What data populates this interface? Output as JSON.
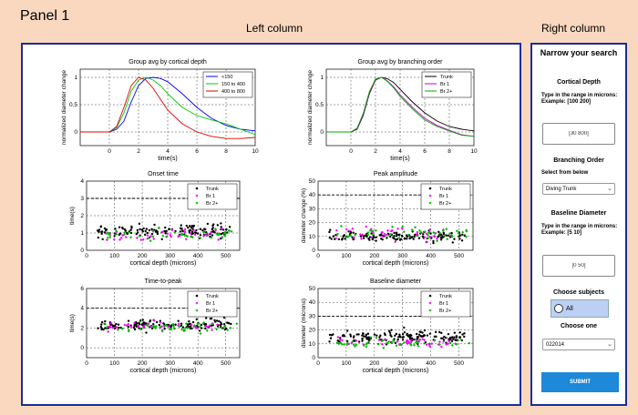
{
  "panel": {
    "title": "Panel 1",
    "left_title": "Left column",
    "right_title": "Right column"
  },
  "sidebar": {
    "heading": "Narrow your search",
    "cortical": {
      "title": "Cortical Depth",
      "instructions": "Type in the range in microns: Example: [100 200]",
      "value": "[30 800]"
    },
    "branching": {
      "title": "Branching Order",
      "select_label": "Select from below",
      "selected": "Diving Trunk"
    },
    "baseline": {
      "title": "Baseline Diameter",
      "instructions": "Type in the range in microns: Example: [5 10]",
      "value": "[0 50]"
    },
    "subjects": {
      "title": "Choose subjects",
      "option": "All"
    },
    "choose_one": {
      "title": "Choose one",
      "selected": "022014"
    },
    "submit": "SUBMIT"
  },
  "colors": {
    "accent": "#1a2e9a",
    "panel_bg": "#fad8c0",
    "submit": "#1e88d9",
    "radio": "#bcd0f5"
  },
  "chart_data": [
    {
      "type": "line",
      "title": "Group avg by cortical depth",
      "xlabel": "time(s)",
      "ylabel": "normalized diameter change",
      "xlim": [
        -2,
        10
      ],
      "ylim": [
        -0.25,
        1.15
      ],
      "xticks": [
        0,
        2,
        4,
        6,
        8,
        10
      ],
      "yticks": [
        0,
        0.5,
        1
      ],
      "legend": [
        "<150",
        "150 to 400",
        "400 to 800"
      ],
      "colors": [
        "#0000ff",
        "#00cc00",
        "#dd0000"
      ],
      "series": [
        {
          "name": "<150",
          "x": [
            -2,
            -1,
            0,
            0.5,
            1,
            1.5,
            2,
            2.5,
            3,
            3.5,
            4,
            5,
            6,
            7,
            8,
            9,
            10
          ],
          "y": [
            0,
            0,
            0,
            0.05,
            0.2,
            0.55,
            0.85,
            0.98,
            1,
            0.98,
            0.92,
            0.7,
            0.45,
            0.25,
            0.12,
            0.05,
            0.02
          ]
        },
        {
          "name": "150 to 400",
          "x": [
            -2,
            -1,
            0,
            0.5,
            1,
            1.5,
            2,
            2.5,
            3,
            3.5,
            4,
            5,
            6,
            7,
            8,
            9,
            10
          ],
          "y": [
            0,
            0,
            0,
            0.08,
            0.35,
            0.75,
            0.95,
            1,
            0.95,
            0.85,
            0.7,
            0.45,
            0.3,
            0.22,
            0.15,
            0.05,
            -0.05
          ]
        },
        {
          "name": "400 to 800",
          "x": [
            -2,
            -1,
            0,
            0.5,
            1,
            1.5,
            2,
            2.5,
            3,
            3.5,
            4,
            5,
            6,
            7,
            8,
            9,
            10
          ],
          "y": [
            0,
            0,
            0,
            0.1,
            0.45,
            0.85,
            1,
            0.95,
            0.8,
            0.6,
            0.4,
            0.15,
            0,
            -0.08,
            -0.12,
            -0.12,
            -0.1
          ]
        }
      ]
    },
    {
      "type": "line",
      "title": "Group avg by branching order",
      "xlabel": "time(s)",
      "ylabel": "normalized diameter change",
      "xlim": [
        -2,
        10
      ],
      "ylim": [
        -0.25,
        1.15
      ],
      "xticks": [
        0,
        2,
        4,
        6,
        8,
        10
      ],
      "yticks": [
        0,
        0.5,
        1
      ],
      "legend": [
        "Trunk",
        "Br 1",
        "Br 2+"
      ],
      "colors": [
        "#000000",
        "#cc00cc",
        "#00aa00"
      ],
      "series": [
        {
          "name": "Trunk",
          "x": [
            -2,
            -1,
            0,
            0.5,
            1,
            1.5,
            2,
            2.5,
            3,
            3.5,
            4,
            5,
            6,
            7,
            8,
            9,
            10
          ],
          "y": [
            0,
            0,
            0,
            0.05,
            0.3,
            0.7,
            0.95,
            1,
            0.97,
            0.9,
            0.78,
            0.55,
            0.35,
            0.2,
            0.1,
            0.05,
            0.02
          ]
        },
        {
          "name": "Br 1",
          "x": [
            -2,
            -1,
            0,
            0.5,
            1,
            1.5,
            2,
            2.5,
            3,
            3.5,
            4,
            5,
            6,
            7,
            8,
            9,
            10
          ],
          "y": [
            0,
            0,
            0,
            0.06,
            0.32,
            0.72,
            0.96,
            1,
            0.93,
            0.82,
            0.68,
            0.45,
            0.25,
            0.12,
            0.03,
            -0.05,
            -0.08
          ]
        },
        {
          "name": "Br 2+",
          "x": [
            -2,
            -1,
            0,
            0.5,
            1,
            1.5,
            2,
            2.5,
            3,
            3.5,
            4,
            5,
            6,
            7,
            8,
            9,
            10
          ],
          "y": [
            0,
            0,
            0,
            0.07,
            0.34,
            0.74,
            0.97,
            1,
            0.92,
            0.8,
            0.65,
            0.42,
            0.22,
            0.1,
            0.02,
            -0.06,
            -0.08
          ]
        }
      ]
    },
    {
      "type": "scatter",
      "title": "Onset time",
      "xlabel": "cortical depth (microns)",
      "ylabel": "time(s)",
      "xlim": [
        0,
        550
      ],
      "ylim": [
        0,
        4
      ],
      "xticks": [
        0,
        100,
        200,
        300,
        400,
        500
      ],
      "yticks": [
        0,
        1,
        2,
        3,
        4
      ],
      "hline": 3,
      "legend": [
        "Trunk",
        "Br 1",
        "Br 2+"
      ],
      "colors": [
        "#000000",
        "#ff00ff",
        "#00bb00"
      ],
      "series": [
        {
          "name": "Trunk",
          "n": 140,
          "xrange": [
            40,
            520
          ],
          "mean": 1.1,
          "spread": 0.35
        },
        {
          "name": "Br 1",
          "n": 40,
          "xrange": [
            60,
            500
          ],
          "mean": 0.9,
          "spread": 0.3
        },
        {
          "name": "Br 2+",
          "n": 45,
          "xrange": [
            60,
            540
          ],
          "mean": 0.9,
          "spread": 0.3
        }
      ]
    },
    {
      "type": "scatter",
      "title": "Peak amplitude",
      "xlabel": "cortical depth (microns)",
      "ylabel": "diameter change (%)",
      "xlim": [
        0,
        550
      ],
      "ylim": [
        0,
        50
      ],
      "xticks": [
        0,
        100,
        200,
        300,
        400,
        500
      ],
      "yticks": [
        0,
        10,
        20,
        30,
        40,
        50
      ],
      "hline": 40,
      "legend": [
        "Trunk",
        "Br 1",
        "Br 2+"
      ],
      "colors": [
        "#000000",
        "#ff00ff",
        "#00bb00"
      ],
      "series": [
        {
          "name": "Trunk",
          "n": 140,
          "xrange": [
            40,
            520
          ],
          "mean": 10,
          "spread": 4
        },
        {
          "name": "Br 1",
          "n": 40,
          "xrange": [
            60,
            500
          ],
          "mean": 12,
          "spread": 5
        },
        {
          "name": "Br 2+",
          "n": 45,
          "xrange": [
            60,
            540
          ],
          "mean": 13,
          "spread": 5
        }
      ]
    },
    {
      "type": "scatter",
      "title": "Time-to-peak",
      "xlabel": "cortical depth (microns)",
      "ylabel": "time(s)",
      "xlim": [
        0,
        550
      ],
      "ylim": [
        -1,
        6
      ],
      "xticks": [
        0,
        100,
        200,
        300,
        400,
        500
      ],
      "yticks": [
        0,
        2,
        4,
        6
      ],
      "hline": 4,
      "legend": [
        "Trunk",
        "Br 1",
        "Br 2+"
      ],
      "colors": [
        "#000000",
        "#ff00ff",
        "#00bb00"
      ],
      "series": [
        {
          "name": "Trunk",
          "n": 140,
          "xrange": [
            40,
            520
          ],
          "mean": 2.3,
          "spread": 0.6
        },
        {
          "name": "Br 1",
          "n": 40,
          "xrange": [
            60,
            500
          ],
          "mean": 2.2,
          "spread": 0.5
        },
        {
          "name": "Br 2+",
          "n": 45,
          "xrange": [
            60,
            540
          ],
          "mean": 2.1,
          "spread": 0.5
        }
      ]
    },
    {
      "type": "scatter",
      "title": "Baseline diameter",
      "xlabel": "cortical depth (microns)",
      "ylabel": "diameter (microns)",
      "xlim": [
        0,
        550
      ],
      "ylim": [
        0,
        50
      ],
      "xticks": [
        0,
        100,
        200,
        300,
        400,
        500
      ],
      "yticks": [
        0,
        10,
        20,
        30,
        40,
        50
      ],
      "hline": 30,
      "legend": [
        "Trunk",
        "Br 1",
        "Br 2+"
      ],
      "colors": [
        "#000000",
        "#ff00ff",
        "#00bb00"
      ],
      "series": [
        {
          "name": "Trunk",
          "n": 150,
          "xrange": [
            40,
            520
          ],
          "mean": 15,
          "spread": 5
        },
        {
          "name": "Br 1",
          "n": 40,
          "xrange": [
            60,
            500
          ],
          "mean": 11,
          "spread": 3
        },
        {
          "name": "Br 2+",
          "n": 45,
          "xrange": [
            60,
            540
          ],
          "mean": 10,
          "spread": 3
        }
      ]
    }
  ]
}
